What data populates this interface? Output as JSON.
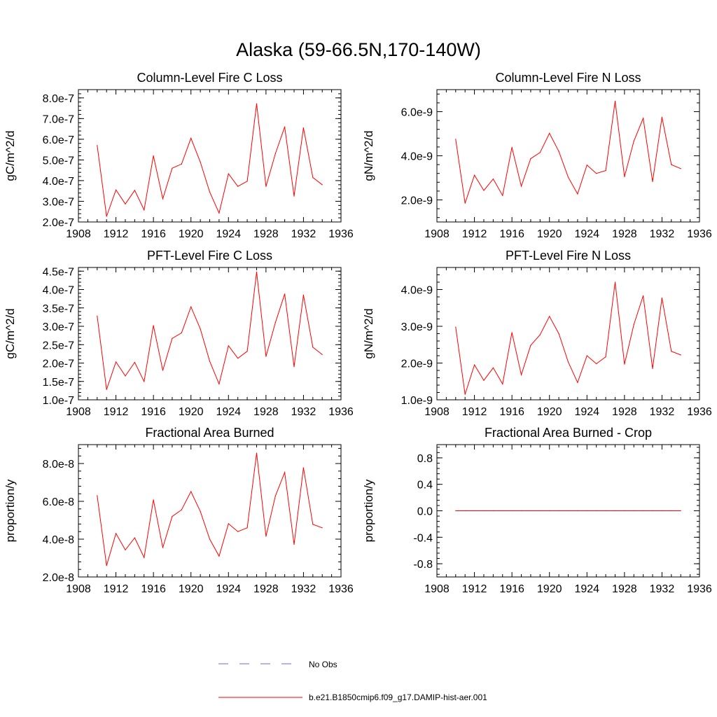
{
  "figure": {
    "title": "Alaska (59-66.5N,170-140W)"
  },
  "legend": {
    "entries": [
      {
        "label": "No Obs",
        "color": "#6a6adc",
        "dash": "dashed"
      },
      {
        "label": "b.e21.B1850cmip6.f09_g17.DAMIP-hist-aer.001",
        "color": "#ff0000",
        "dash": "solid"
      }
    ]
  },
  "colors": {
    "series": "#ff0000",
    "axis": "#000000"
  },
  "chart_data": [
    {
      "type": "line",
      "title": "Column-Level Fire C Loss",
      "xlabel": "",
      "ylabel": "gC/m^2/d",
      "xlim": [
        1908,
        1936
      ],
      "ylim": [
        2e-07,
        8.4e-07
      ],
      "xticks": [
        1908,
        1912,
        1916,
        1920,
        1924,
        1928,
        1932,
        1936
      ],
      "yticks": [
        2e-07,
        3e-07,
        4e-07,
        5e-07,
        6e-07,
        7e-07,
        8e-07
      ],
      "ytick_labels": [
        "2.0e-7",
        "3.0e-7",
        "4.0e-7",
        "5.0e-7",
        "6.0e-7",
        "7.0e-7",
        "8.0e-7"
      ],
      "x": [
        1910,
        1911,
        1912,
        1913,
        1914,
        1915,
        1916,
        1917,
        1918,
        1919,
        1920,
        1921,
        1922,
        1923,
        1924,
        1925,
        1926,
        1927,
        1928,
        1929,
        1930,
        1931,
        1932,
        1933,
        1934
      ],
      "series": [
        {
          "values": [
            5.7e-07,
            2.27e-07,
            3.55e-07,
            2.87e-07,
            3.53e-07,
            2.58e-07,
            5.2e-07,
            3.12e-07,
            4.6e-07,
            4.8e-07,
            6.05e-07,
            4.9e-07,
            3.45e-07,
            2.43e-07,
            4.33e-07,
            3.72e-07,
            3.97e-07,
            7.72e-07,
            3.72e-07,
            5.3e-07,
            6.6e-07,
            3.25e-07,
            6.55e-07,
            4.15e-07,
            3.8e-07
          ]
        }
      ],
      "grid": false
    },
    {
      "type": "line",
      "title": "Column-Level Fire N Loss",
      "xlabel": "",
      "ylabel": "gN/m^2/d",
      "xlim": [
        1908,
        1936
      ],
      "ylim": [
        1e-09,
        7e-09
      ],
      "xticks": [
        1908,
        1912,
        1916,
        1920,
        1924,
        1928,
        1932,
        1936
      ],
      "yticks": [
        2e-09,
        4e-09,
        6e-09
      ],
      "ytick_labels": [
        "2.0e-9",
        "4.0e-9",
        "6.0e-9"
      ],
      "x": [
        1910,
        1911,
        1912,
        1913,
        1914,
        1915,
        1916,
        1917,
        1918,
        1919,
        1920,
        1921,
        1922,
        1923,
        1924,
        1925,
        1926,
        1927,
        1928,
        1929,
        1930,
        1931,
        1932,
        1933,
        1934
      ],
      "series": [
        {
          "values": [
            4.75e-09,
            1.85e-09,
            3.12e-09,
            2.43e-09,
            2.95e-09,
            2.2e-09,
            4.38e-09,
            2.62e-09,
            3.87e-09,
            4.15e-09,
            5.02e-09,
            4.2e-09,
            3.03e-09,
            2.27e-09,
            3.58e-09,
            3.2e-09,
            3.33e-09,
            6.48e-09,
            3.05e-09,
            4.67e-09,
            5.7e-09,
            2.83e-09,
            5.75e-09,
            3.6e-09,
            3.42e-09
          ]
        }
      ],
      "grid": false
    },
    {
      "type": "line",
      "title": "PFT-Level Fire C Loss",
      "xlabel": "",
      "ylabel": "gC/m^2/d",
      "xlim": [
        1908,
        1936
      ],
      "ylim": [
        1e-07,
        4.6e-07
      ],
      "xticks": [
        1908,
        1912,
        1916,
        1920,
        1924,
        1928,
        1932,
        1936
      ],
      "yticks": [
        1e-07,
        1.5e-07,
        2e-07,
        2.5e-07,
        3e-07,
        3.5e-07,
        4e-07,
        4.5e-07
      ],
      "ytick_labels": [
        "1.0e-7",
        "1.5e-7",
        "2.0e-7",
        "2.5e-7",
        "3.0e-7",
        "3.5e-7",
        "4.0e-7",
        "4.5e-7"
      ],
      "x": [
        1910,
        1911,
        1912,
        1913,
        1914,
        1915,
        1916,
        1917,
        1918,
        1919,
        1920,
        1921,
        1922,
        1923,
        1924,
        1925,
        1926,
        1927,
        1928,
        1929,
        1930,
        1931,
        1932,
        1933,
        1934
      ],
      "series": [
        {
          "values": [
            3.28e-07,
            1.28e-07,
            2.03e-07,
            1.65e-07,
            2.02e-07,
            1.5e-07,
            3.02e-07,
            1.8e-07,
            2.67e-07,
            2.82e-07,
            3.53e-07,
            2.93e-07,
            2.05e-07,
            1.43e-07,
            2.47e-07,
            2.13e-07,
            2.32e-07,
            4.48e-07,
            2.18e-07,
            3.1e-07,
            3.88e-07,
            1.9e-07,
            3.85e-07,
            2.43e-07,
            2.23e-07
          ]
        }
      ],
      "grid": false
    },
    {
      "type": "line",
      "title": "PFT-Level Fire N Loss",
      "xlabel": "",
      "ylabel": "gN/m^2/d",
      "xlim": [
        1908,
        1936
      ],
      "ylim": [
        1e-09,
        4.6e-09
      ],
      "xticks": [
        1908,
        1912,
        1916,
        1920,
        1924,
        1928,
        1932,
        1936
      ],
      "yticks": [
        1e-09,
        2e-09,
        3e-09,
        4e-09
      ],
      "ytick_labels": [
        "1.0e-9",
        "2.0e-9",
        "3.0e-9",
        "4.0e-9"
      ],
      "x": [
        1910,
        1911,
        1912,
        1913,
        1914,
        1915,
        1916,
        1917,
        1918,
        1919,
        1920,
        1921,
        1922,
        1923,
        1924,
        1925,
        1926,
        1927,
        1928,
        1929,
        1930,
        1931,
        1932,
        1933,
        1934
      ],
      "series": [
        {
          "values": [
            2.98e-09,
            1.15e-09,
            1.95e-09,
            1.53e-09,
            1.87e-09,
            1.43e-09,
            2.83e-09,
            1.68e-09,
            2.48e-09,
            2.77e-09,
            3.27e-09,
            2.8e-09,
            2.03e-09,
            1.47e-09,
            2.2e-09,
            1.98e-09,
            2.17e-09,
            4.2e-09,
            1.97e-09,
            3.05e-09,
            3.83e-09,
            1.85e-09,
            3.77e-09,
            2.32e-09,
            2.22e-09
          ]
        }
      ],
      "grid": false
    },
    {
      "type": "line",
      "title": "Fractional Area Burned",
      "xlabel": "",
      "ylabel": "proportion/y",
      "xlim": [
        1908,
        1936
      ],
      "ylim": [
        2e-08,
        9e-08
      ],
      "xticks": [
        1908,
        1912,
        1916,
        1920,
        1924,
        1928,
        1932,
        1936
      ],
      "yticks": [
        2e-08,
        4e-08,
        6e-08,
        8e-08
      ],
      "ytick_labels": [
        "2.0e-8",
        "4.0e-8",
        "6.0e-8",
        "8.0e-8"
      ],
      "x": [
        1910,
        1911,
        1912,
        1913,
        1914,
        1915,
        1916,
        1917,
        1918,
        1919,
        1920,
        1921,
        1922,
        1923,
        1924,
        1925,
        1926,
        1927,
        1928,
        1929,
        1930,
        1931,
        1932,
        1933,
        1934
      ],
      "series": [
        {
          "values": [
            6.3e-08,
            2.6e-08,
            4.3e-08,
            3.43e-08,
            4.07e-08,
            3.03e-08,
            6.08e-08,
            3.55e-08,
            5.2e-08,
            5.55e-08,
            6.52e-08,
            5.47e-08,
            4e-08,
            3.1e-08,
            4.82e-08,
            4.4e-08,
            4.6e-08,
            8.55e-08,
            4.15e-08,
            6.28e-08,
            7.53e-08,
            3.72e-08,
            7.78e-08,
            4.78e-08,
            4.6e-08
          ]
        }
      ],
      "grid": false
    },
    {
      "type": "line",
      "title": "Fractional Area Burned - Crop",
      "xlabel": "",
      "ylabel": "proportion/y",
      "xlim": [
        1908,
        1936
      ],
      "ylim": [
        -1.0,
        1.0
      ],
      "xticks": [
        1908,
        1912,
        1916,
        1920,
        1924,
        1928,
        1932,
        1936
      ],
      "yticks": [
        -0.8,
        -0.4,
        0.0,
        0.4,
        0.8
      ],
      "ytick_labels": [
        "-0.8",
        "-0.4",
        "0.0",
        "0.4",
        "0.8"
      ],
      "x": [
        1910,
        1911,
        1912,
        1913,
        1914,
        1915,
        1916,
        1917,
        1918,
        1919,
        1920,
        1921,
        1922,
        1923,
        1924,
        1925,
        1926,
        1927,
        1928,
        1929,
        1930,
        1931,
        1932,
        1933,
        1934
      ],
      "series": [
        {
          "values": [
            0,
            0,
            0,
            0,
            0,
            0,
            0,
            0,
            0,
            0,
            0,
            0,
            0,
            0,
            0,
            0,
            0,
            0,
            0,
            0,
            0,
            0,
            0,
            0,
            0
          ]
        }
      ],
      "grid": false
    }
  ]
}
